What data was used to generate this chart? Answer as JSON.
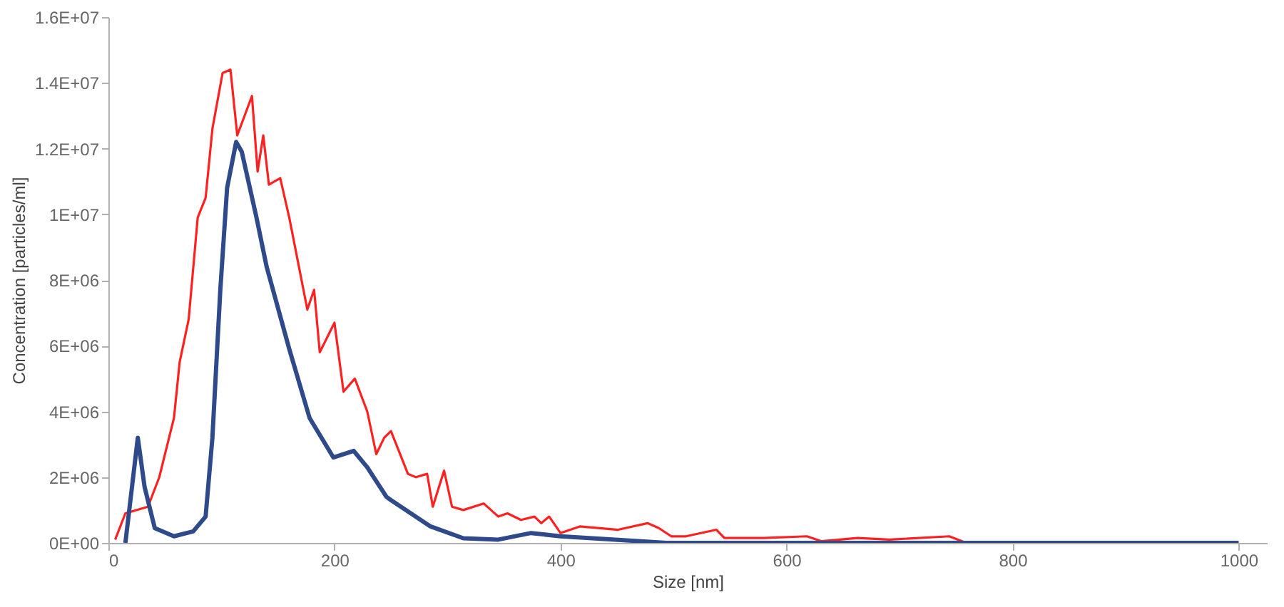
{
  "chart_data": {
    "type": "line",
    "xlabel": "Size [nm]",
    "ylabel": "Concentration [particles/ml]",
    "xlim": [
      0,
      1025
    ],
    "xticks": [
      0,
      200,
      400,
      600,
      800,
      1000
    ],
    "ylim": [
      0,
      16000000
    ],
    "yticks": [
      {
        "value": 0,
        "label": "0E+00"
      },
      {
        "value": 2000000,
        "label": "2E+06"
      },
      {
        "value": 4000000,
        "label": "4E+06"
      },
      {
        "value": 6000000,
        "label": "6E+06"
      },
      {
        "value": 8000000,
        "label": "8E+06"
      },
      {
        "value": 10000000,
        "label": "1E+07"
      },
      {
        "value": 12000000,
        "label": "1.2E+07"
      },
      {
        "value": 14000000,
        "label": "1.4E+07"
      },
      {
        "value": 16000000,
        "label": "1.6E+07"
      }
    ],
    "grid": false,
    "legend": false,
    "marker": "none",
    "line_style": "solid",
    "series": [
      {
        "color": "#ff2020",
        "x": [
          6,
          15,
          35,
          45,
          58,
          63,
          71,
          79,
          86,
          92,
          101,
          108,
          114,
          127,
          132,
          137,
          142,
          152,
          160,
          176,
          182,
          187,
          200,
          208,
          218,
          229,
          237,
          244,
          250,
          265,
          272,
          282,
          287,
          297,
          304,
          314,
          332,
          345,
          353,
          365,
          377,
          383,
          390,
          400,
          417,
          451,
          477,
          487,
          498,
          511,
          538,
          545,
          580,
          618,
          631,
          663,
          691,
          744,
          759,
          1000
        ],
        "values": [
          100000,
          900000,
          1100000,
          2000000,
          3800000,
          5500000,
          6800000,
          9900000,
          10500000,
          12600000,
          14300000,
          14400000,
          12400000,
          13600000,
          11300000,
          12400000,
          10900000,
          11100000,
          9900000,
          7100000,
          7700000,
          5800000,
          6700000,
          4600000,
          5000000,
          4000000,
          2700000,
          3200000,
          3400000,
          2100000,
          2000000,
          2100000,
          1100000,
          2200000,
          1100000,
          1000000,
          1200000,
          800000,
          900000,
          700000,
          800000,
          600000,
          800000,
          300000,
          500000,
          400000,
          600000,
          450000,
          200000,
          200000,
          400000,
          150000,
          150000,
          200000,
          50000,
          150000,
          100000,
          200000,
          0,
          0
        ]
      },
      {
        "color": "#2e4a8a",
        "x": [
          15,
          26,
          32,
          41,
          58,
          75,
          86,
          92,
          99,
          105,
          113,
          118,
          131,
          140,
          160,
          178,
          199,
          217,
          229,
          246,
          250,
          285,
          314,
          345,
          374,
          400,
          494,
          1000
        ],
        "values": [
          0,
          3200000,
          1700000,
          450000,
          200000,
          350000,
          800000,
          3200000,
          7700000,
          10800000,
          12200000,
          11900000,
          9900000,
          8400000,
          5900000,
          3800000,
          2600000,
          2800000,
          2300000,
          1400000,
          1300000,
          500000,
          140000,
          100000,
          300000,
          200000,
          0,
          0
        ]
      }
    ]
  }
}
